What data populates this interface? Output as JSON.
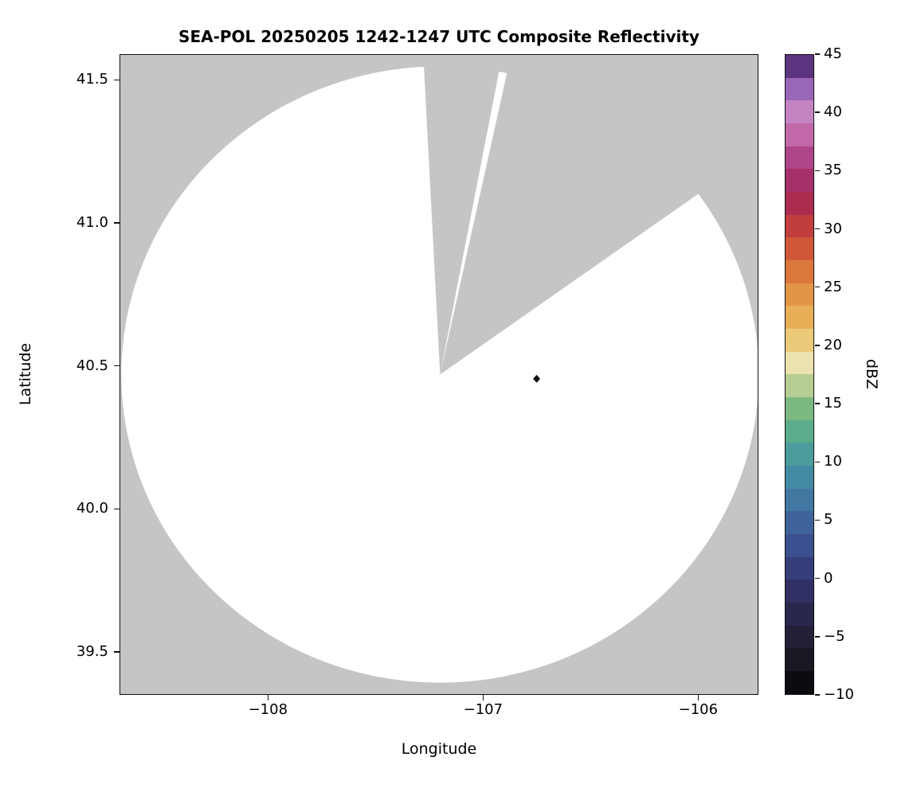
{
  "figure": {
    "background": "#ffffff"
  },
  "chart_data": {
    "type": "heatmap",
    "subtype": "radar_composite_reflectivity_ppi",
    "title": "SEA-POL 20250205 1242-1247 UTC Composite Reflectivity",
    "xlabel": "Longitude",
    "ylabel": "Latitude",
    "xlim": [
      -108.69,
      -105.72
    ],
    "ylim": [
      39.35,
      41.59
    ],
    "xticks": {
      "values": [
        -108,
        -107,
        -106
      ],
      "labels": [
        "−108",
        "−107",
        "−106"
      ]
    },
    "yticks": {
      "values": [
        39.5,
        40.0,
        40.5,
        41.0,
        41.5
      ],
      "labels": [
        "39.5",
        "40.0",
        "40.5",
        "41.0",
        "41.5"
      ]
    },
    "grid": false,
    "plot_bg": "#c5c5c5",
    "spine_color": "#111111",
    "coverage": {
      "center_lon": -107.2,
      "center_lat": 40.47,
      "radius_lon_deg": 1.485,
      "radius_lat_deg": 1.08,
      "fill": "#ffffff",
      "missing_sectors_deg_from_north": [
        [
          -3,
          11
        ],
        [
          12.5,
          55
        ]
      ]
    },
    "marker": {
      "lon": -106.75,
      "lat": 40.455,
      "shape": "diamond",
      "color": "#111111"
    },
    "data_note": "No reflectivity echoes visible within coverage disk (rendered white); gray areas are outside coverage or blocked sectors.",
    "colorbar": {
      "label": "dBZ",
      "min": -10,
      "max": 45,
      "n_bands": 28,
      "ticks": {
        "values": [
          45,
          40,
          35,
          30,
          25,
          20,
          15,
          10,
          5,
          0,
          -5,
          -10
        ],
        "labels": [
          "45",
          "40",
          "35",
          "30",
          "25",
          "20",
          "15",
          "10",
          "5",
          "0",
          "−5",
          "−10"
        ]
      },
      "stops": [
        {
          "v": -10,
          "c": "#060606"
        },
        {
          "v": -7.5,
          "c": "#16161f"
        },
        {
          "v": -5,
          "c": "#221f38"
        },
        {
          "v": -2.5,
          "c": "#2c2a54"
        },
        {
          "v": 0,
          "c": "#343672"
        },
        {
          "v": 2.5,
          "c": "#3a4d8c"
        },
        {
          "v": 5,
          "c": "#3f669c"
        },
        {
          "v": 7.5,
          "c": "#427fa3"
        },
        {
          "v": 10,
          "c": "#4598a0"
        },
        {
          "v": 12.5,
          "c": "#58ab8c"
        },
        {
          "v": 15,
          "c": "#83bc7d"
        },
        {
          "v": 17,
          "c": "#c6d49a"
        },
        {
          "v": 18,
          "c": "#ece7c0"
        },
        {
          "v": 19.5,
          "c": "#ecd88c"
        },
        {
          "v": 22,
          "c": "#e9b45c"
        },
        {
          "v": 25,
          "c": "#e28d42"
        },
        {
          "v": 27.5,
          "c": "#d66436"
        },
        {
          "v": 30,
          "c": "#c43f3c"
        },
        {
          "v": 32.5,
          "c": "#a92a52"
        },
        {
          "v": 35,
          "c": "#a33376"
        },
        {
          "v": 37.5,
          "c": "#bd599c"
        },
        {
          "v": 39.5,
          "c": "#cc86c0"
        },
        {
          "v": 41,
          "c": "#b87fc6"
        },
        {
          "v": 42.5,
          "c": "#8e5bb0"
        },
        {
          "v": 44,
          "c": "#5c3380"
        },
        {
          "v": 45,
          "c": "#38204e"
        }
      ]
    }
  }
}
